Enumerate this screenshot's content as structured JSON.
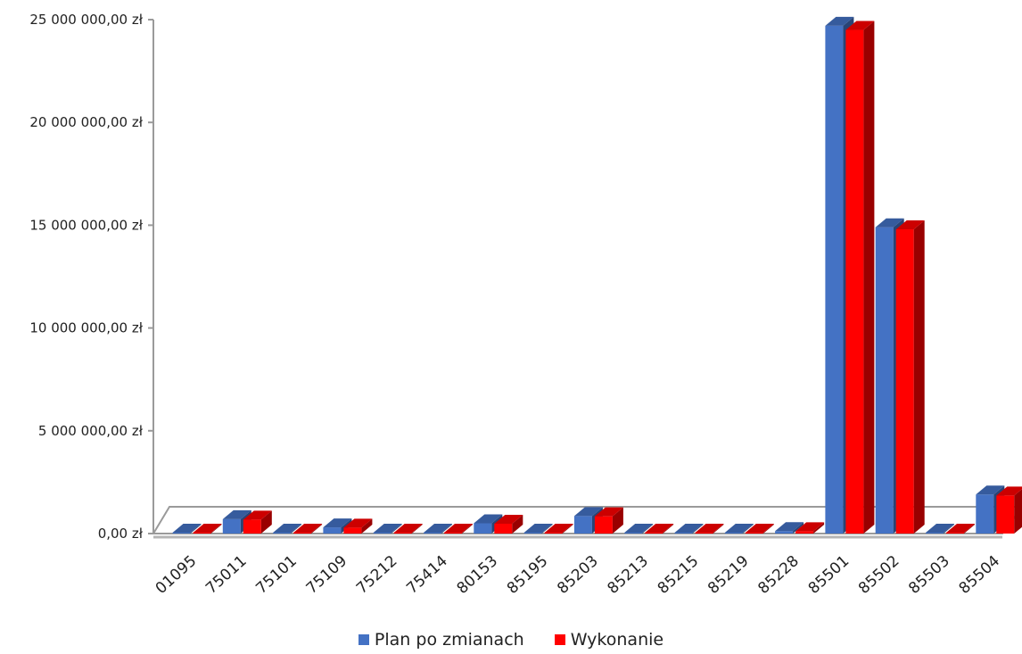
{
  "chart_data": {
    "type": "bar",
    "title": "",
    "xlabel": "",
    "ylabel": "",
    "ylim": [
      0,
      25000000
    ],
    "yticks": [
      0,
      5000000,
      10000000,
      15000000,
      20000000,
      25000000
    ],
    "ytick_labels": [
      "0,00 zł",
      "5 000 000,00 zł",
      "10 000 000,00 zł",
      "15 000 000,00 zł",
      "20 000 000,00 zł",
      "25 000 000,00 zł"
    ],
    "categories": [
      "01095",
      "75011",
      "75101",
      "75109",
      "75212",
      "75414",
      "80153",
      "85195",
      "85203",
      "85213",
      "85215",
      "85219",
      "85228",
      "85501",
      "85502",
      "85503",
      "85504"
    ],
    "series": [
      {
        "name": "Plan po zmianach",
        "color": "#4472C4",
        "values": [
          40000,
          700000,
          5000,
          300000,
          10000,
          20000,
          500000,
          5000,
          850000,
          30000,
          20000,
          25000,
          120000,
          24700000,
          14900000,
          5000,
          1900000
        ]
      },
      {
        "name": "Wykonanie",
        "color": "#FF0000",
        "values": [
          38000,
          680000,
          4000,
          290000,
          9000,
          18000,
          480000,
          4000,
          840000,
          28000,
          19000,
          24000,
          115000,
          24500000,
          14800000,
          4000,
          1850000
        ]
      }
    ],
    "legend_position": "bottom",
    "grid": false
  }
}
